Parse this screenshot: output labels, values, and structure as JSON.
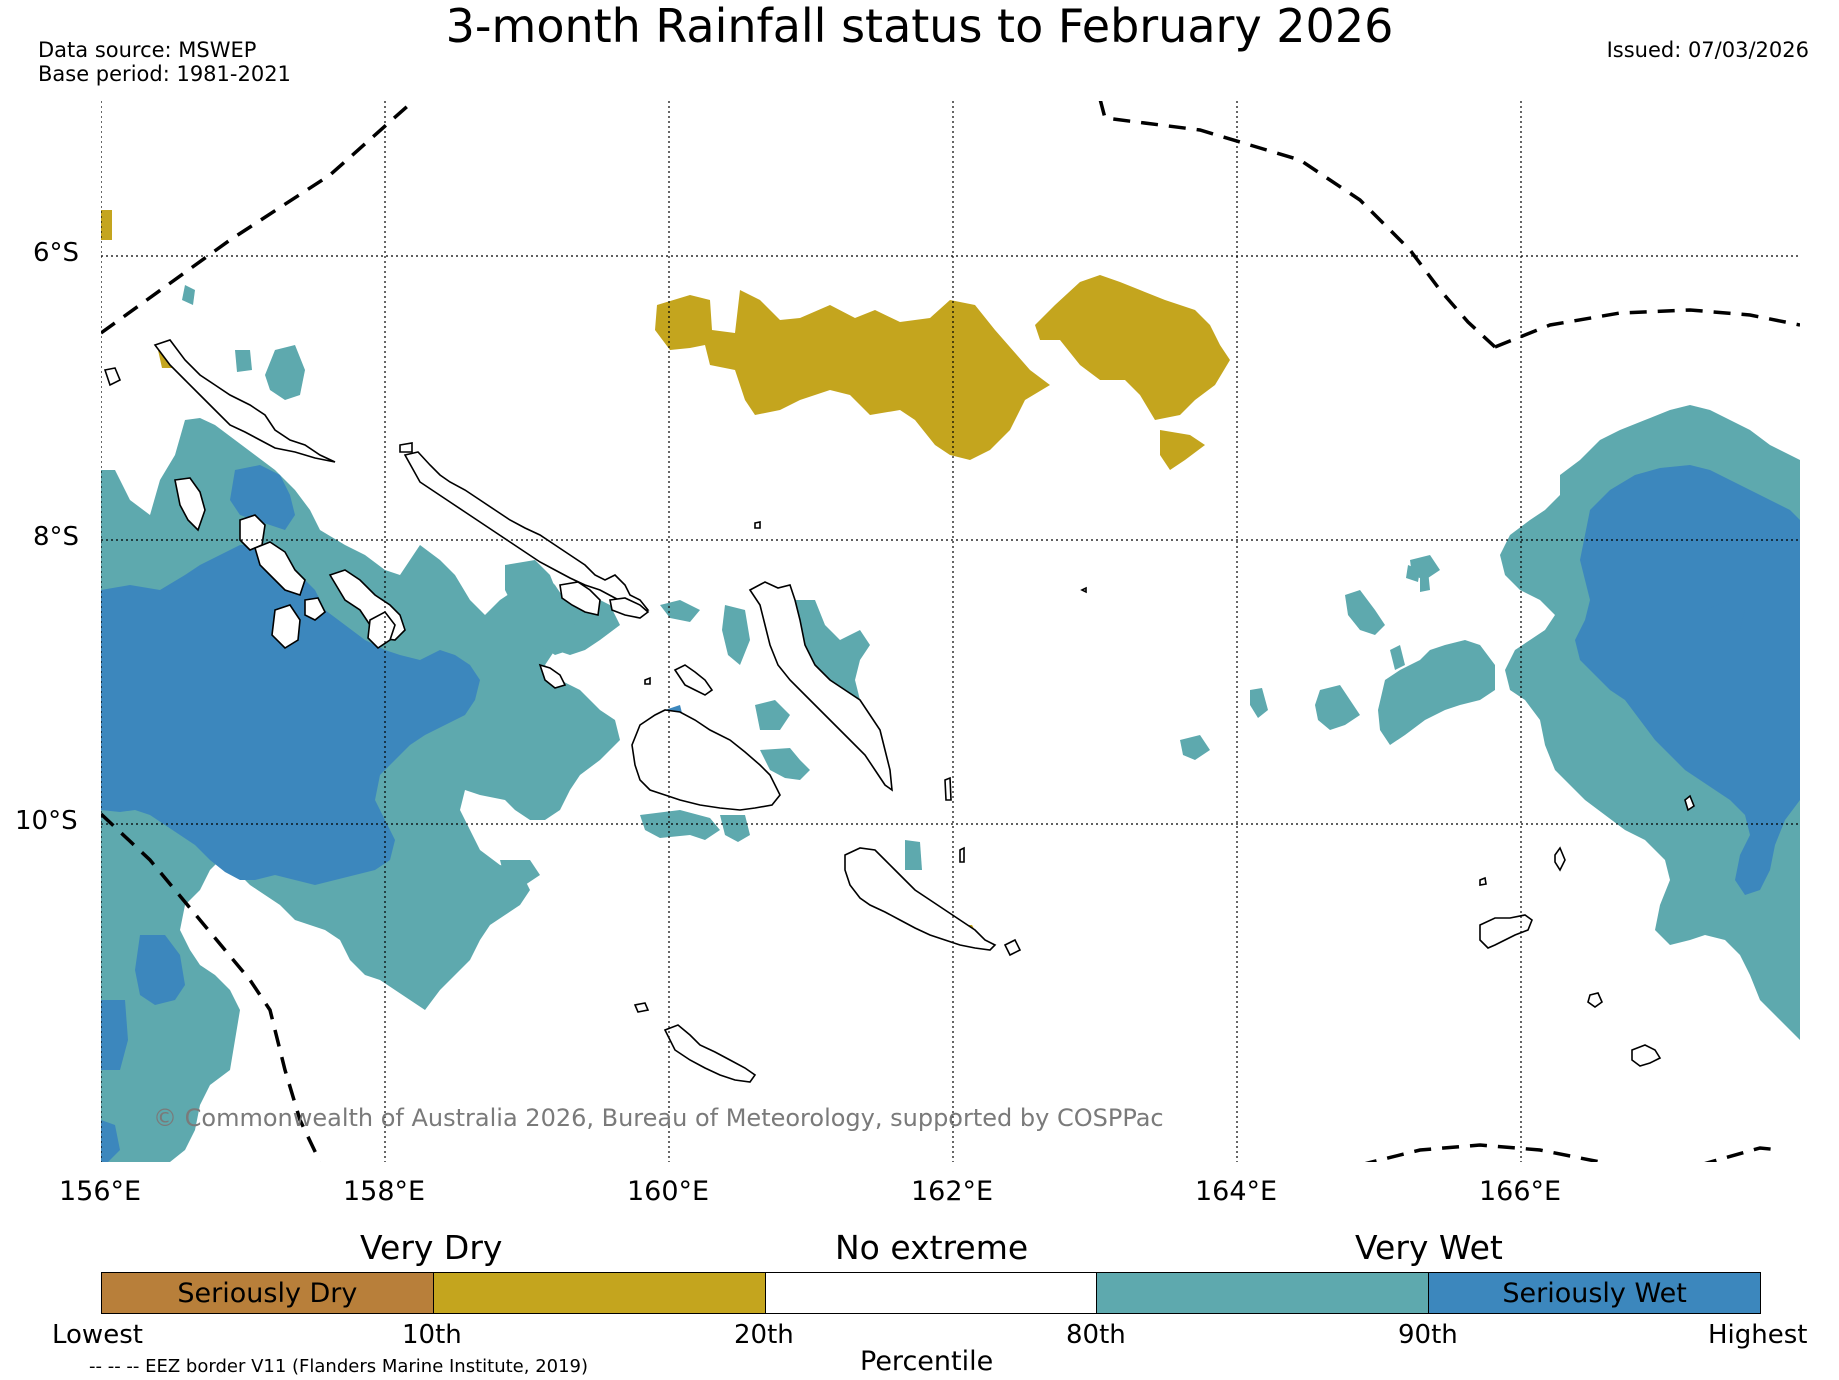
{
  "title": "3-month Rainfall status to February 2026",
  "data_source": "Data source: MSWEP",
  "base_period": "Base period: 1981-2021",
  "issued": "Issued: 07/03/2026",
  "latitude_labels": [
    "6°S",
    "8°S",
    "10°S"
  ],
  "longitude_labels": [
    "156°E",
    "158°E",
    "160°E",
    "162°E",
    "164°E",
    "166°E"
  ],
  "copyright": "© Commonwealth of Australia 2026, Bureau of Meteorology, supported by COSPPac",
  "legend": {
    "category_labels": [
      "Very Dry",
      "No extreme",
      "Very Wet"
    ],
    "segments": [
      {
        "label": "Seriously Dry",
        "color": "#b87f3a"
      },
      {
        "label": "",
        "color": "#c4a51e"
      },
      {
        "label": "",
        "color": "#ffffff"
      },
      {
        "label": "",
        "color": "#5ea9ae"
      },
      {
        "label": "Seriously Wet",
        "color": "#3c87bd"
      }
    ],
    "percentile_ticks": [
      "Lowest",
      "10th",
      "20th",
      "80th",
      "90th",
      "Highest"
    ],
    "axis_label": "Percentile",
    "eez_note": "-- -- -- EEZ border V11 (Flanders Marine Institute, 2019)"
  },
  "colors": {
    "very_dry": "#c4a51e",
    "seriously_dry": "#b87f3a",
    "very_wet": "#5ea9ae",
    "seriously_wet": "#3c87bd"
  }
}
